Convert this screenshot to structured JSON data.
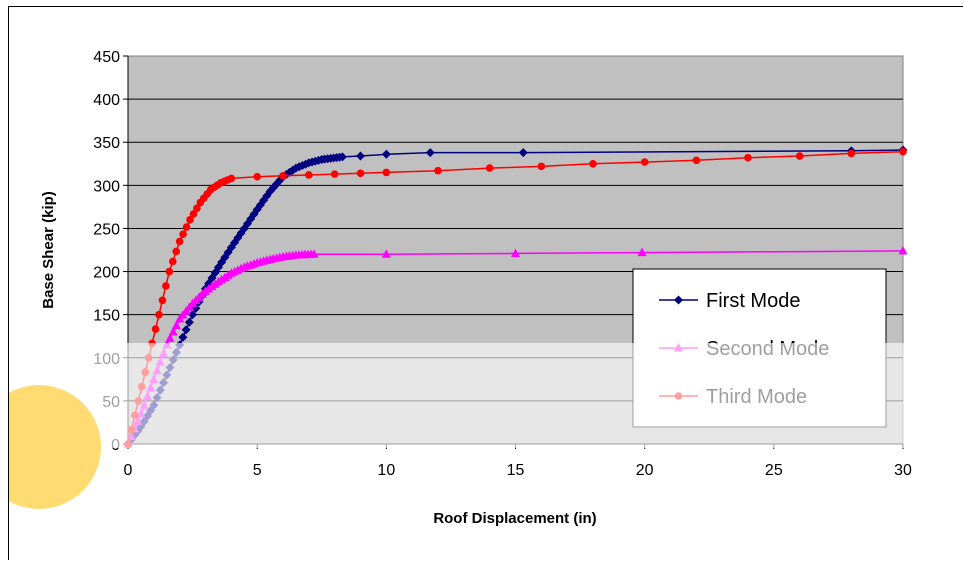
{
  "chart_data": {
    "type": "line",
    "title": "",
    "xlabel": "Roof Displacement (in)",
    "ylabel": "Base Shear (kip)",
    "xlim": [
      0,
      30
    ],
    "ylim": [
      0,
      450
    ],
    "xticks": [
      "0",
      "5",
      "10",
      "15",
      "20",
      "25",
      "30"
    ],
    "yticks": [
      "0",
      "50",
      "100",
      "150",
      "200",
      "250",
      "300",
      "350",
      "400",
      "450"
    ],
    "grid": "horizontal",
    "plot_background": "#c0c0c0",
    "legend_position": "lower-right",
    "series": [
      {
        "name": "First Mode",
        "color": "#000080",
        "marker": "diamond",
        "points": [
          [
            0,
            0
          ],
          [
            0.5,
            20
          ],
          [
            1,
            45
          ],
          [
            1.5,
            80
          ],
          [
            2,
            115
          ],
          [
            2.5,
            150
          ],
          [
            3,
            180
          ],
          [
            3.5,
            205
          ],
          [
            4,
            228
          ],
          [
            4.5,
            250
          ],
          [
            5,
            272
          ],
          [
            5.5,
            293
          ],
          [
            6,
            310
          ],
          [
            6.5,
            320
          ],
          [
            7,
            326
          ],
          [
            7.5,
            330
          ],
          [
            8.3,
            333
          ],
          [
            9,
            334
          ],
          [
            10,
            336
          ],
          [
            11.7,
            338
          ],
          [
            15.3,
            338
          ],
          [
            28,
            340
          ],
          [
            30,
            341
          ]
        ]
      },
      {
        "name": "Second Mode",
        "color": "#ff00ff",
        "marker": "triangle",
        "points": [
          [
            0,
            0
          ],
          [
            0.5,
            35
          ],
          [
            1,
            75
          ],
          [
            1.5,
            115
          ],
          [
            2,
            145
          ],
          [
            2.5,
            163
          ],
          [
            3,
            177
          ],
          [
            3.5,
            188
          ],
          [
            4,
            198
          ],
          [
            4.5,
            205
          ],
          [
            5,
            210
          ],
          [
            5.5,
            214
          ],
          [
            6,
            217
          ],
          [
            6.5,
            219
          ],
          [
            7.2,
            220
          ],
          [
            10,
            220
          ],
          [
            15,
            221
          ],
          [
            19.9,
            222
          ],
          [
            30,
            224
          ]
        ]
      },
      {
        "name": "Third Mode",
        "color": "#ff0000",
        "marker": "circle",
        "points": [
          [
            0,
            0
          ],
          [
            0.4,
            50
          ],
          [
            0.8,
            100
          ],
          [
            1.2,
            150
          ],
          [
            1.6,
            200
          ],
          [
            2,
            235
          ],
          [
            2.4,
            260
          ],
          [
            2.8,
            280
          ],
          [
            3.2,
            295
          ],
          [
            3.6,
            303
          ],
          [
            4,
            308
          ],
          [
            5,
            310
          ],
          [
            6,
            311
          ],
          [
            7,
            312
          ],
          [
            8,
            313
          ],
          [
            9,
            314
          ],
          [
            10,
            315
          ],
          [
            12,
            317
          ],
          [
            14,
            320
          ],
          [
            16,
            322
          ],
          [
            18,
            325
          ],
          [
            20,
            327
          ],
          [
            22,
            329
          ],
          [
            24,
            332
          ],
          [
            26,
            334
          ],
          [
            28,
            337
          ],
          [
            30,
            339
          ]
        ]
      }
    ]
  },
  "overlay": {
    "band_color": "#ffffff",
    "circle_color": "#ffd966"
  }
}
